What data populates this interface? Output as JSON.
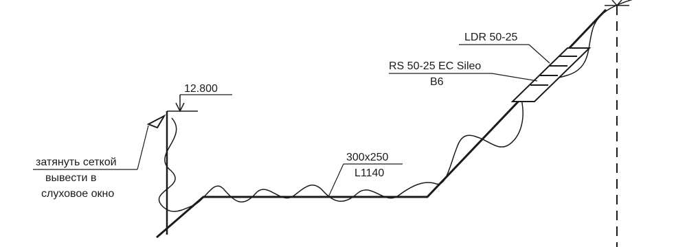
{
  "labels": {
    "elevation": "12.800",
    "note_line1": "затянуть сеткой",
    "note_line2": "вывести в",
    "note_line3": "слуховое окно",
    "duct_size": "300x250",
    "duct_length": "L1140",
    "reducer": "LDR 50-25",
    "fan_model": "RS 50-25 EC Sileo",
    "fan_code": "B6"
  },
  "colors": {
    "line": "#1a1a1a",
    "background": "#ffffff"
  }
}
